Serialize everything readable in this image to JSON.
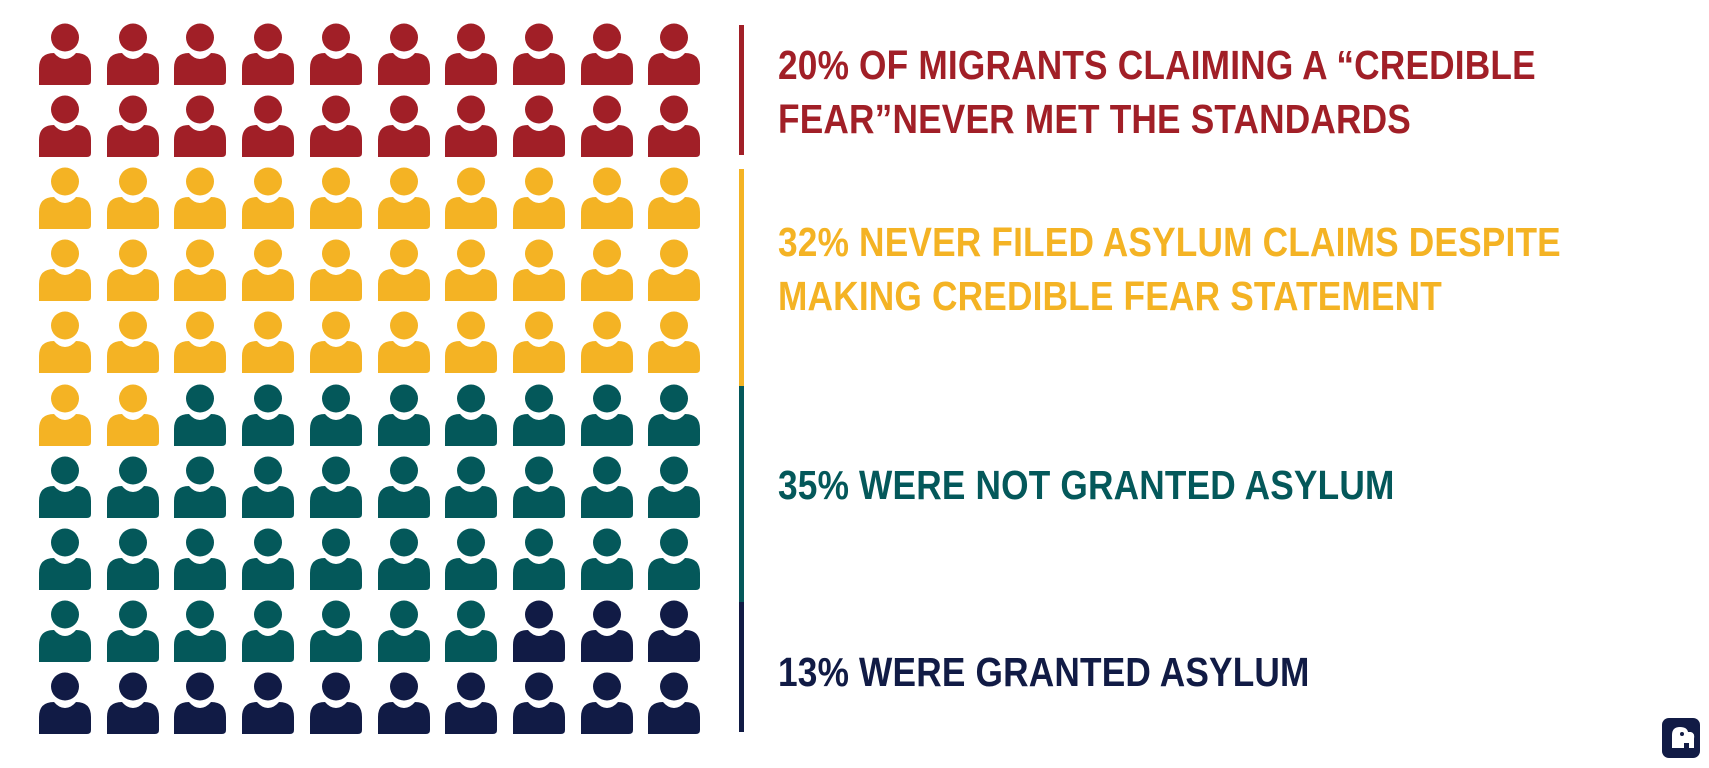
{
  "chart_data": {
    "type": "pictograph",
    "total_units": 100,
    "grid": {
      "rows": 10,
      "columns": 10
    },
    "categories": [
      {
        "label": "20% OF MIGRANTS CLAIMING A “CREDIBLE\nFEAR”NEVER MET THE STANDARDS",
        "percent": 20,
        "color": "#A11F27"
      },
      {
        "label": "32% NEVER FILED ASYLUM CLAIMS DESPITE\nMAKING CREDIBLE FEAR STATEMENT",
        "percent": 32,
        "color": "#F4B324"
      },
      {
        "label": "35% WERE NOT GRANTED ASYLUM",
        "percent": 35,
        "color": "#04585A"
      },
      {
        "label": "13% WERE GRANTED ASYLUM",
        "percent": 13,
        "color": "#111B45"
      }
    ]
  },
  "icons": {
    "unit": "person-icon",
    "logo": "elephant-logo-icon"
  },
  "colors": {
    "background": "#FFFFFF",
    "logo": "#111B45"
  }
}
